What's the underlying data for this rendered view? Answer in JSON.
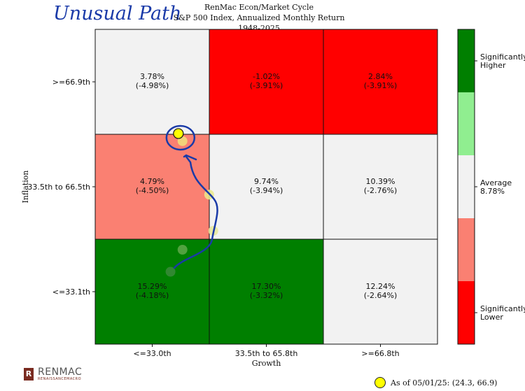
{
  "annotation": {
    "handwritten": "Unusual Path"
  },
  "chart_data": {
    "type": "heatmap",
    "title_lines": [
      "RenMac Econ/Market Cycle",
      "S&P 500 Index, Annualized Monthly Return",
      "1948-2025"
    ],
    "xlabel": "Growth",
    "ylabel": "Inflation",
    "x_categories": [
      "<=33.0th",
      "33.5th to 65.8th",
      ">=66.8th"
    ],
    "y_categories": [
      "<=33.1th",
      "33.5th to 66.5th",
      ">=66.9th"
    ],
    "cells": [
      {
        "row": 2,
        "col": 0,
        "value": "3.78%",
        "sub": "(-4.98%)",
        "color": "#f2f2f2"
      },
      {
        "row": 2,
        "col": 1,
        "value": "-1.02%",
        "sub": "(-3.91%)",
        "color": "#ff0000"
      },
      {
        "row": 2,
        "col": 2,
        "value": "2.84%",
        "sub": "(-3.91%)",
        "color": "#ff0000"
      },
      {
        "row": 1,
        "col": 0,
        "value": "4.79%",
        "sub": "(-4.50%)",
        "color": "#fa8072"
      },
      {
        "row": 1,
        "col": 1,
        "value": "9.74%",
        "sub": "(-3.94%)",
        "color": "#f2f2f2"
      },
      {
        "row": 1,
        "col": 2,
        "value": "10.39%",
        "sub": "(-2.76%)",
        "color": "#f2f2f2"
      },
      {
        "row": 0,
        "col": 0,
        "value": "15.29%",
        "sub": "(-4.18%)",
        "color": "#007f00"
      },
      {
        "row": 0,
        "col": 1,
        "value": "17.30%",
        "sub": "(-3.32%)",
        "color": "#007f00"
      },
      {
        "row": 0,
        "col": 2,
        "value": "12.24%",
        "sub": "(-2.64%)",
        "color": "#f2f2f2"
      }
    ],
    "path_points": [
      {
        "x": 22.0,
        "y": 23.0,
        "color": "#3a8a3a"
      },
      {
        "x": 25.5,
        "y": 30.0,
        "color": "#5fa84a"
      },
      {
        "x": 34.5,
        "y": 36.0,
        "color": "#e8e89a"
      },
      {
        "x": 33.3,
        "y": 47.5,
        "color": "#eaea8a"
      },
      {
        "x": 25.5,
        "y": 64.5,
        "color": "#f0e07a"
      },
      {
        "x": 24.3,
        "y": 66.9,
        "color": "#ffff00"
      }
    ],
    "colorbar": {
      "labels": [
        {
          "level": "top",
          "text_lines": [
            "Significantly",
            "Higher"
          ]
        },
        {
          "level": "middle",
          "text_lines": [
            "Average",
            "8.78%"
          ]
        },
        {
          "level": "bottom",
          "text_lines": [
            "Significantly",
            "Lower"
          ]
        }
      ],
      "colors": [
        "#007f00",
        "#90ee90",
        "#f2f2f2",
        "#fa8072",
        "#ff0000"
      ]
    },
    "legend": {
      "label": "As of 05/01/25: (24.3, 66.9)"
    }
  },
  "footer": {
    "logo_text": "RENMAC",
    "logo_sub": "RENAISSANCEMACRO",
    "logo_letter": "R"
  }
}
